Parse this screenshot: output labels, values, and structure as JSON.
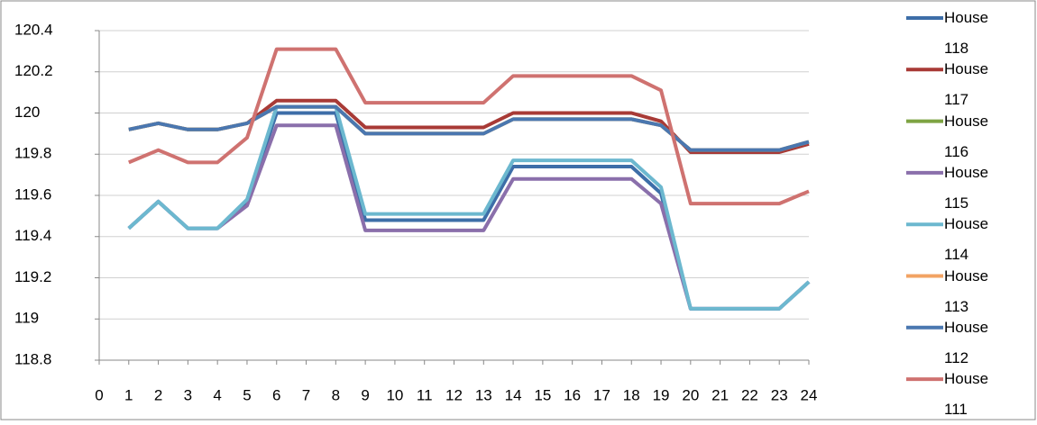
{
  "chart_data": {
    "type": "line",
    "x": [
      1,
      2,
      3,
      4,
      5,
      6,
      7,
      8,
      9,
      10,
      11,
      12,
      13,
      14,
      15,
      16,
      17,
      18,
      19,
      20,
      21,
      22,
      23,
      24
    ],
    "xlim": [
      0,
      24
    ],
    "xticks": [
      0,
      1,
      2,
      3,
      4,
      5,
      6,
      7,
      8,
      9,
      10,
      11,
      12,
      13,
      14,
      15,
      16,
      17,
      18,
      19,
      20,
      21,
      22,
      23,
      24
    ],
    "ylim": [
      118.8,
      120.4
    ],
    "yticks": [
      118.8,
      119,
      119.2,
      119.4,
      119.6,
      119.8,
      120,
      120.2,
      120.4
    ],
    "grid": true,
    "legend": "right",
    "series": [
      {
        "name": "House 118",
        "color": "#3d6ea8",
        "values": [
          119.44,
          119.57,
          119.44,
          119.44,
          119.57,
          120.0,
          120.0,
          120.0,
          119.48,
          119.48,
          119.48,
          119.48,
          119.48,
          119.74,
          119.74,
          119.74,
          119.74,
          119.74,
          119.61,
          119.05,
          119.05,
          119.05,
          119.05,
          119.18
        ]
      },
      {
        "name": "House 117",
        "color": "#a83a36",
        "values": [
          119.92,
          119.95,
          119.92,
          119.92,
          119.95,
          120.06,
          120.06,
          120.06,
          119.93,
          119.93,
          119.93,
          119.93,
          119.93,
          120.0,
          120.0,
          120.0,
          120.0,
          120.0,
          119.96,
          119.81,
          119.81,
          119.81,
          119.81,
          119.85
        ]
      },
      {
        "name": "House 116",
        "color": "#7ea343",
        "values": [
          119.92,
          119.95,
          119.92,
          119.92,
          119.95,
          120.03,
          120.03,
          120.03,
          119.9,
          119.9,
          119.9,
          119.9,
          119.9,
          119.97,
          119.97,
          119.97,
          119.97,
          119.97,
          119.94,
          119.82,
          119.82,
          119.82,
          119.82,
          119.86
        ]
      },
      {
        "name": "House 115",
        "color": "#8a6fab",
        "values": [
          119.44,
          119.57,
          119.44,
          119.44,
          119.55,
          119.94,
          119.94,
          119.94,
          119.43,
          119.43,
          119.43,
          119.43,
          119.43,
          119.68,
          119.68,
          119.68,
          119.68,
          119.68,
          119.56,
          119.05,
          119.05,
          119.05,
          119.05,
          119.18
        ]
      },
      {
        "name": "House 114",
        "color": "#6cb8cf",
        "values": [
          119.44,
          119.57,
          119.44,
          119.44,
          119.58,
          120.03,
          120.03,
          120.03,
          119.51,
          119.51,
          119.51,
          119.51,
          119.51,
          119.77,
          119.77,
          119.77,
          119.77,
          119.77,
          119.64,
          119.05,
          119.05,
          119.05,
          119.05,
          119.18
        ]
      },
      {
        "name": "House 113",
        "color": "#f2a363",
        "values": [
          119.92,
          119.95,
          119.92,
          119.92,
          119.95,
          120.03,
          120.03,
          120.03,
          119.9,
          119.9,
          119.9,
          119.9,
          119.9,
          119.97,
          119.97,
          119.97,
          119.97,
          119.97,
          119.94,
          119.82,
          119.82,
          119.82,
          119.82,
          119.86
        ]
      },
      {
        "name": "House 112",
        "color": "#4a77b0",
        "values": [
          119.92,
          119.95,
          119.92,
          119.92,
          119.95,
          120.03,
          120.03,
          120.03,
          119.9,
          119.9,
          119.9,
          119.9,
          119.9,
          119.97,
          119.97,
          119.97,
          119.97,
          119.97,
          119.94,
          119.82,
          119.82,
          119.82,
          119.82,
          119.86
        ]
      },
      {
        "name": "House 111",
        "color": "#cf7270",
        "values": [
          119.76,
          119.82,
          119.76,
          119.76,
          119.88,
          120.31,
          120.31,
          120.31,
          120.05,
          120.05,
          120.05,
          120.05,
          120.05,
          120.18,
          120.18,
          120.18,
          120.18,
          120.18,
          120.11,
          119.56,
          119.56,
          119.56,
          119.56,
          119.62
        ]
      }
    ]
  }
}
